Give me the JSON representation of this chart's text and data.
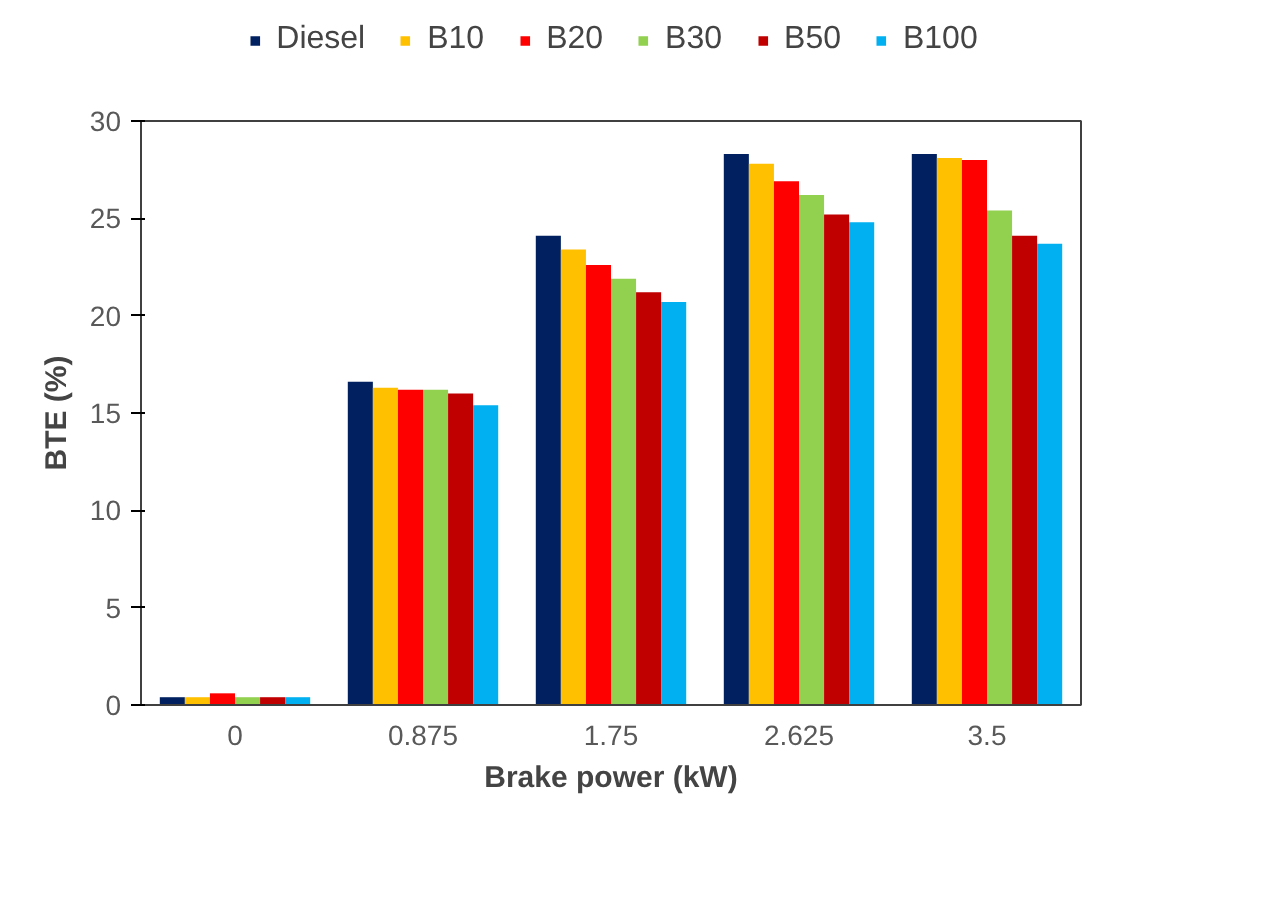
{
  "chart_data": {
    "type": "bar",
    "xlabel": "Brake power (kW)",
    "ylabel": "BTE (%)",
    "categories": [
      "0",
      "0.875",
      "1.75",
      "2.625",
      "3.5"
    ],
    "series": [
      {
        "name": "Diesel",
        "color": "#002060",
        "values": [
          0.4,
          16.6,
          24.1,
          28.3,
          28.3
        ]
      },
      {
        "name": "B10",
        "color": "#ffc000",
        "values": [
          0.4,
          16.3,
          23.4,
          27.8,
          28.1
        ]
      },
      {
        "name": "B20",
        "color": "#ff0000",
        "values": [
          0.6,
          16.2,
          22.6,
          26.9,
          28.0
        ]
      },
      {
        "name": "B30",
        "color": "#92d050",
        "values": [
          0.4,
          16.2,
          21.9,
          26.2,
          25.4
        ]
      },
      {
        "name": "B50",
        "color": "#c00000",
        "values": [
          0.4,
          16.0,
          21.2,
          25.2,
          24.1
        ]
      },
      {
        "name": "B100",
        "color": "#00b0f0",
        "values": [
          0.4,
          15.4,
          20.7,
          24.8,
          23.7
        ]
      }
    ],
    "ylim": [
      0,
      30
    ],
    "yticks": [
      0,
      5,
      10,
      15,
      20,
      25,
      30
    ],
    "grid": false,
    "legend": "top"
  }
}
